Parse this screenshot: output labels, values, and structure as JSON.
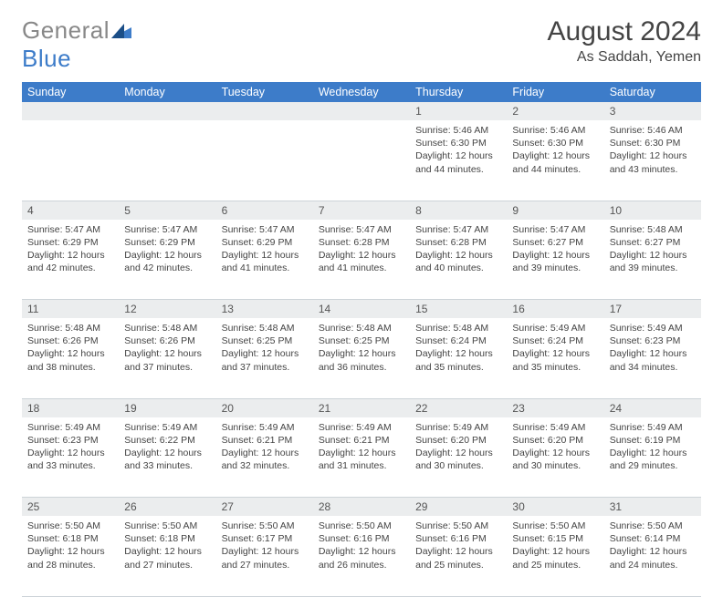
{
  "logo": {
    "part1": "General",
    "part2": "Blue",
    "color_gray": "#888888",
    "color_blue": "#3d7cc9"
  },
  "title": "August 2024",
  "location": "As Saddah, Yemen",
  "day_header_bg": "#3d7cc9",
  "daynum_bg": "#ebedee",
  "columns": [
    "Sunday",
    "Monday",
    "Tuesday",
    "Wednesday",
    "Thursday",
    "Friday",
    "Saturday"
  ],
  "weeks": [
    [
      null,
      null,
      null,
      null,
      {
        "n": "1",
        "sunrise": "5:46 AM",
        "sunset": "6:30 PM",
        "daylight": "12 hours and 44 minutes."
      },
      {
        "n": "2",
        "sunrise": "5:46 AM",
        "sunset": "6:30 PM",
        "daylight": "12 hours and 44 minutes."
      },
      {
        "n": "3",
        "sunrise": "5:46 AM",
        "sunset": "6:30 PM",
        "daylight": "12 hours and 43 minutes."
      }
    ],
    [
      {
        "n": "4",
        "sunrise": "5:47 AM",
        "sunset": "6:29 PM",
        "daylight": "12 hours and 42 minutes."
      },
      {
        "n": "5",
        "sunrise": "5:47 AM",
        "sunset": "6:29 PM",
        "daylight": "12 hours and 42 minutes."
      },
      {
        "n": "6",
        "sunrise": "5:47 AM",
        "sunset": "6:29 PM",
        "daylight": "12 hours and 41 minutes."
      },
      {
        "n": "7",
        "sunrise": "5:47 AM",
        "sunset": "6:28 PM",
        "daylight": "12 hours and 41 minutes."
      },
      {
        "n": "8",
        "sunrise": "5:47 AM",
        "sunset": "6:28 PM",
        "daylight": "12 hours and 40 minutes."
      },
      {
        "n": "9",
        "sunrise": "5:47 AM",
        "sunset": "6:27 PM",
        "daylight": "12 hours and 39 minutes."
      },
      {
        "n": "10",
        "sunrise": "5:48 AM",
        "sunset": "6:27 PM",
        "daylight": "12 hours and 39 minutes."
      }
    ],
    [
      {
        "n": "11",
        "sunrise": "5:48 AM",
        "sunset": "6:26 PM",
        "daylight": "12 hours and 38 minutes."
      },
      {
        "n": "12",
        "sunrise": "5:48 AM",
        "sunset": "6:26 PM",
        "daylight": "12 hours and 37 minutes."
      },
      {
        "n": "13",
        "sunrise": "5:48 AM",
        "sunset": "6:25 PM",
        "daylight": "12 hours and 37 minutes."
      },
      {
        "n": "14",
        "sunrise": "5:48 AM",
        "sunset": "6:25 PM",
        "daylight": "12 hours and 36 minutes."
      },
      {
        "n": "15",
        "sunrise": "5:48 AM",
        "sunset": "6:24 PM",
        "daylight": "12 hours and 35 minutes."
      },
      {
        "n": "16",
        "sunrise": "5:49 AM",
        "sunset": "6:24 PM",
        "daylight": "12 hours and 35 minutes."
      },
      {
        "n": "17",
        "sunrise": "5:49 AM",
        "sunset": "6:23 PM",
        "daylight": "12 hours and 34 minutes."
      }
    ],
    [
      {
        "n": "18",
        "sunrise": "5:49 AM",
        "sunset": "6:23 PM",
        "daylight": "12 hours and 33 minutes."
      },
      {
        "n": "19",
        "sunrise": "5:49 AM",
        "sunset": "6:22 PM",
        "daylight": "12 hours and 33 minutes."
      },
      {
        "n": "20",
        "sunrise": "5:49 AM",
        "sunset": "6:21 PM",
        "daylight": "12 hours and 32 minutes."
      },
      {
        "n": "21",
        "sunrise": "5:49 AM",
        "sunset": "6:21 PM",
        "daylight": "12 hours and 31 minutes."
      },
      {
        "n": "22",
        "sunrise": "5:49 AM",
        "sunset": "6:20 PM",
        "daylight": "12 hours and 30 minutes."
      },
      {
        "n": "23",
        "sunrise": "5:49 AM",
        "sunset": "6:20 PM",
        "daylight": "12 hours and 30 minutes."
      },
      {
        "n": "24",
        "sunrise": "5:49 AM",
        "sunset": "6:19 PM",
        "daylight": "12 hours and 29 minutes."
      }
    ],
    [
      {
        "n": "25",
        "sunrise": "5:50 AM",
        "sunset": "6:18 PM",
        "daylight": "12 hours and 28 minutes."
      },
      {
        "n": "26",
        "sunrise": "5:50 AM",
        "sunset": "6:18 PM",
        "daylight": "12 hours and 27 minutes."
      },
      {
        "n": "27",
        "sunrise": "5:50 AM",
        "sunset": "6:17 PM",
        "daylight": "12 hours and 27 minutes."
      },
      {
        "n": "28",
        "sunrise": "5:50 AM",
        "sunset": "6:16 PM",
        "daylight": "12 hours and 26 minutes."
      },
      {
        "n": "29",
        "sunrise": "5:50 AM",
        "sunset": "6:16 PM",
        "daylight": "12 hours and 25 minutes."
      },
      {
        "n": "30",
        "sunrise": "5:50 AM",
        "sunset": "6:15 PM",
        "daylight": "12 hours and 25 minutes."
      },
      {
        "n": "31",
        "sunrise": "5:50 AM",
        "sunset": "6:14 PM",
        "daylight": "12 hours and 24 minutes."
      }
    ]
  ],
  "labels": {
    "sunrise": "Sunrise:",
    "sunset": "Sunset:",
    "daylight": "Daylight:"
  }
}
